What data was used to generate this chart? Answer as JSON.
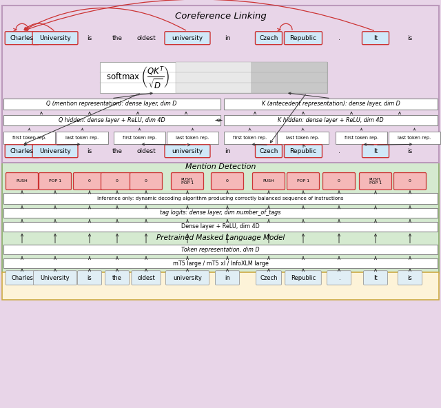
{
  "title": "Coreference Linking",
  "words": [
    "Charles",
    "University",
    "is",
    "the",
    "oldest",
    "university",
    "in",
    "Czech",
    "Republic",
    ".",
    "It",
    "is"
  ],
  "highlighted_words": [
    0,
    1,
    5,
    7,
    8,
    10
  ],
  "push_pop_labels": [
    "PUSH",
    "POP 1",
    "0",
    "0",
    "0",
    "PUSH,\nPOP 1",
    "0",
    "PUSH",
    "POP 1",
    "0",
    "PUSH,\nPOP 1",
    "0"
  ],
  "purple_bg": "#e8d5e8",
  "green_bg": "#d5ead0",
  "yellow_bg": "#fdf3d8",
  "white_box": "#ffffff",
  "pink_box": "#f5b8b8",
  "blue_box": "#d0e8f8",
  "gray_cell": "#c8c8c8",
  "light_gray_cell": "#e8e8e8",
  "red_border": "#cc3333",
  "dark_border": "#555555",
  "green_border": "#88aa66",
  "yellow_border": "#ccaa44"
}
